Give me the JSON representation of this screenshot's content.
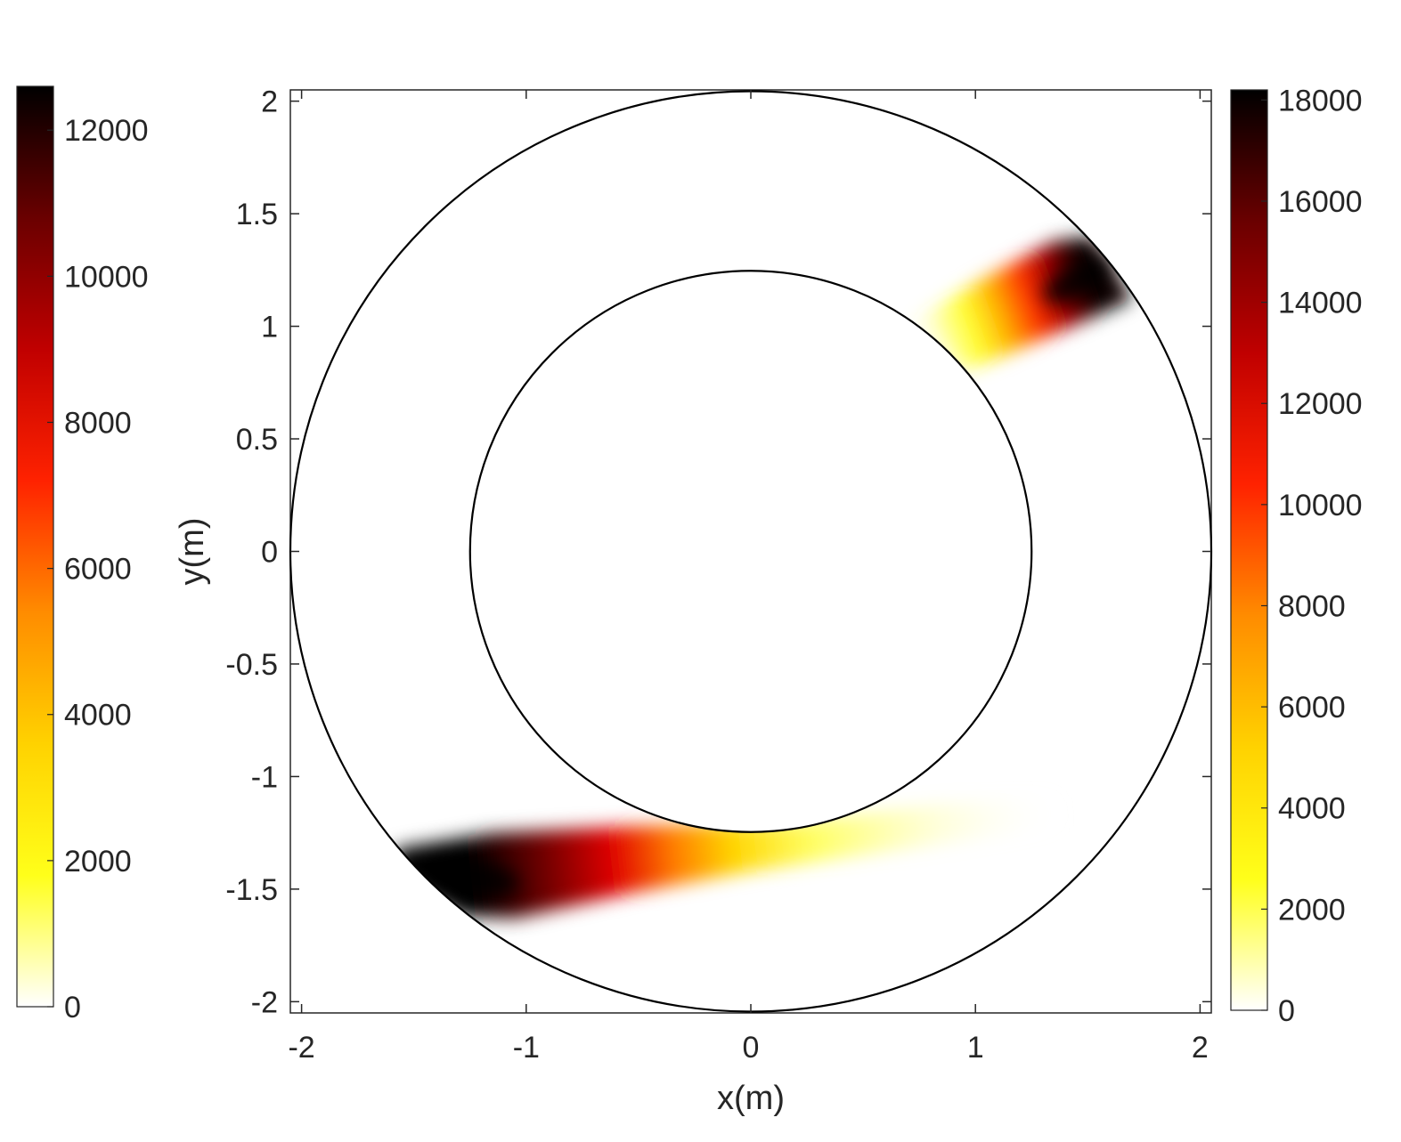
{
  "chart_data": {
    "type": "heatmap",
    "xlabel": "x(m)",
    "ylabel": "y(m)",
    "xlim": [
      -2.05,
      2.05
    ],
    "ylim": [
      -2.05,
      2.05
    ],
    "x_ticks": [
      -2,
      -1,
      0,
      1,
      2
    ],
    "x_tick_labels": [
      "-2",
      "-1",
      "0",
      "1",
      "2"
    ],
    "y_ticks": [
      2,
      1.5,
      1,
      0.5,
      0,
      -0.5,
      -1,
      -1.5,
      -2
    ],
    "y_tick_labels": [
      "2",
      "1.5",
      "1",
      "0.5",
      "0",
      "-0.5",
      "-1",
      "-1.5",
      "-2"
    ],
    "grid": false,
    "colormap": [
      "#ffffff",
      "#ffff1a",
      "#ffd200",
      "#ff8c00",
      "#ff2200",
      "#c00000",
      "#6a0000",
      "#000000"
    ],
    "circles": [
      {
        "name": "outer-boundary",
        "center": [
          0,
          0
        ],
        "radius": 2.05
      },
      {
        "name": "inner-boundary",
        "center": [
          0,
          0
        ],
        "radius": 1.25
      }
    ],
    "hotspots": [
      {
        "name": "upper-right-plume",
        "peak_xy": [
          1.48,
          1.2
        ],
        "tail_xy": [
          0.8,
          0.95
        ],
        "peak_value": 18000,
        "colorbar": "right"
      },
      {
        "name": "lower-left-plume",
        "peak_xy": [
          -1.25,
          -1.45
        ],
        "tail_xy": [
          1.4,
          -1.15
        ],
        "peak_value": 12500,
        "colorbar": "left"
      }
    ],
    "colorbars": [
      {
        "name": "left",
        "range": [
          0,
          12600
        ],
        "ticks": [
          0,
          2000,
          4000,
          6000,
          8000,
          10000,
          12000
        ],
        "tick_labels": [
          "0",
          "2000",
          "4000",
          "6000",
          "8000",
          "10000",
          "12000"
        ]
      },
      {
        "name": "right",
        "range": [
          0,
          18200
        ],
        "ticks": [
          0,
          2000,
          4000,
          6000,
          8000,
          10000,
          12000,
          14000,
          16000,
          18000
        ],
        "tick_labels": [
          "0",
          "2000",
          "4000",
          "6000",
          "8000",
          "10000",
          "12000",
          "14000",
          "16000",
          "18000"
        ]
      }
    ]
  }
}
